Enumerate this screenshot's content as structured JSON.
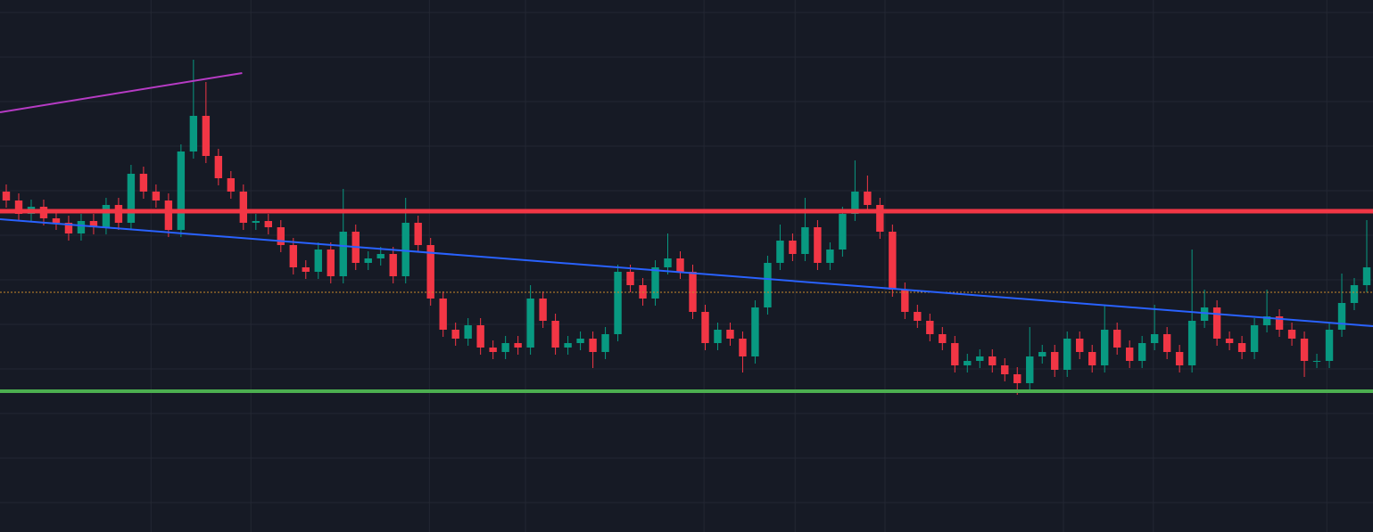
{
  "chart_data": {
    "type": "candlestick",
    "xlim": [
      -0.5,
      109.5
    ],
    "ylim": [
      0,
      597
    ],
    "xticks": [
      11.6,
      19.6,
      33.9,
      41.6,
      55.9,
      63.2,
      70.4,
      84.7,
      91.9,
      105.8
    ],
    "yticks": [
      583,
      533,
      483,
      433,
      383,
      333,
      283,
      233,
      183,
      133,
      83,
      33
    ],
    "grid": true,
    "background": "#161a25",
    "grid_color": "#232733",
    "up_color": "#089981",
    "down_color": "#f23645",
    "open": [
      382,
      372,
      357,
      365,
      352,
      347,
      335,
      349,
      342,
      367,
      347,
      402,
      382,
      372,
      339,
      427,
      467,
      422,
      397,
      382,
      347,
      349,
      342,
      322,
      297,
      292,
      317,
      287,
      337,
      302,
      307,
      312,
      287,
      347,
      322,
      262,
      227,
      217,
      232,
      207,
      202,
      212,
      207,
      262,
      237,
      207,
      212,
      217,
      202,
      222,
      292,
      277,
      262,
      297,
      307,
      292,
      247,
      212,
      227,
      217,
      197,
      252,
      302,
      327,
      312,
      342,
      302,
      317,
      357,
      382,
      367,
      337,
      272,
      247,
      237,
      222,
      212,
      187,
      192,
      197,
      187,
      177,
      167,
      197,
      202,
      182,
      217,
      202,
      187,
      227,
      207,
      192,
      212,
      222,
      202,
      187,
      237,
      252,
      217,
      212,
      202,
      232,
      242,
      227,
      217,
      192,
      192,
      227,
      257,
      277
    ],
    "high": [
      390,
      380,
      373,
      373,
      360,
      355,
      357,
      357,
      375,
      375,
      412,
      410,
      390,
      380,
      435,
      530,
      505,
      430,
      405,
      390,
      357,
      357,
      350,
      330,
      305,
      325,
      325,
      385,
      345,
      315,
      320,
      320,
      375,
      355,
      330,
      270,
      235,
      240,
      240,
      215,
      220,
      220,
      277,
      270,
      245,
      220,
      225,
      225,
      230,
      300,
      300,
      285,
      305,
      335,
      315,
      300,
      255,
      235,
      235,
      225,
      260,
      310,
      345,
      335,
      375,
      350,
      325,
      365,
      417,
      400,
      375,
      345,
      280,
      255,
      245,
      230,
      220,
      200,
      205,
      205,
      195,
      185,
      230,
      210,
      210,
      225,
      225,
      210,
      255,
      235,
      215,
      220,
      255,
      230,
      210,
      317,
      272,
      260,
      225,
      220,
      240,
      272,
      250,
      235,
      225,
      200,
      235,
      290,
      285,
      350
    ],
    "low": [
      364,
      349,
      349,
      344,
      339,
      327,
      327,
      334,
      334,
      339,
      339,
      374,
      364,
      331,
      331,
      419,
      414,
      389,
      374,
      339,
      339,
      334,
      314,
      289,
      284,
      284,
      279,
      279,
      294,
      294,
      299,
      279,
      279,
      314,
      254,
      219,
      209,
      209,
      199,
      194,
      194,
      199,
      199,
      229,
      199,
      199,
      204,
      184,
      194,
      214,
      269,
      254,
      254,
      289,
      284,
      239,
      204,
      204,
      209,
      179,
      189,
      244,
      294,
      304,
      304,
      294,
      294,
      309,
      349,
      359,
      329,
      264,
      239,
      229,
      214,
      204,
      179,
      179,
      184,
      179,
      169,
      154,
      159,
      189,
      174,
      174,
      194,
      179,
      179,
      199,
      184,
      184,
      204,
      194,
      179,
      179,
      229,
      209,
      204,
      194,
      194,
      224,
      219,
      209,
      174,
      184,
      184,
      219,
      249,
      269
    ],
    "close": [
      372,
      357,
      365,
      352,
      347,
      335,
      349,
      342,
      367,
      347,
      402,
      382,
      372,
      339,
      427,
      467,
      422,
      397,
      382,
      347,
      349,
      342,
      322,
      297,
      292,
      317,
      287,
      337,
      302,
      307,
      312,
      287,
      347,
      322,
      262,
      227,
      217,
      232,
      207,
      202,
      212,
      207,
      262,
      237,
      207,
      212,
      217,
      202,
      222,
      292,
      277,
      262,
      297,
      307,
      292,
      247,
      212,
      227,
      217,
      197,
      252,
      302,
      327,
      312,
      342,
      302,
      317,
      357,
      382,
      367,
      337,
      272,
      247,
      237,
      222,
      212,
      187,
      192,
      197,
      187,
      177,
      167,
      197,
      202,
      182,
      217,
      202,
      187,
      227,
      207,
      192,
      212,
      222,
      202,
      187,
      237,
      252,
      217,
      212,
      202,
      232,
      242,
      227,
      217,
      192,
      192,
      227,
      257,
      277,
      297
    ],
    "hlines": [
      {
        "value": 360,
        "color": "#f23645",
        "width": 5
      },
      {
        "value": 269,
        "color": "#c98a2b",
        "width": 1,
        "dash": true
      },
      {
        "value": 158,
        "color": "#4caf50",
        "width": 4
      }
    ],
    "trendlines": [
      {
        "color": "#2962ff",
        "points": [
          [
            -0.5,
            351
          ],
          [
            109.5,
            231
          ]
        ]
      },
      {
        "color": "#b63bc4",
        "points": [
          [
            -0.5,
            471
          ],
          [
            18.9,
            515
          ]
        ]
      }
    ]
  }
}
